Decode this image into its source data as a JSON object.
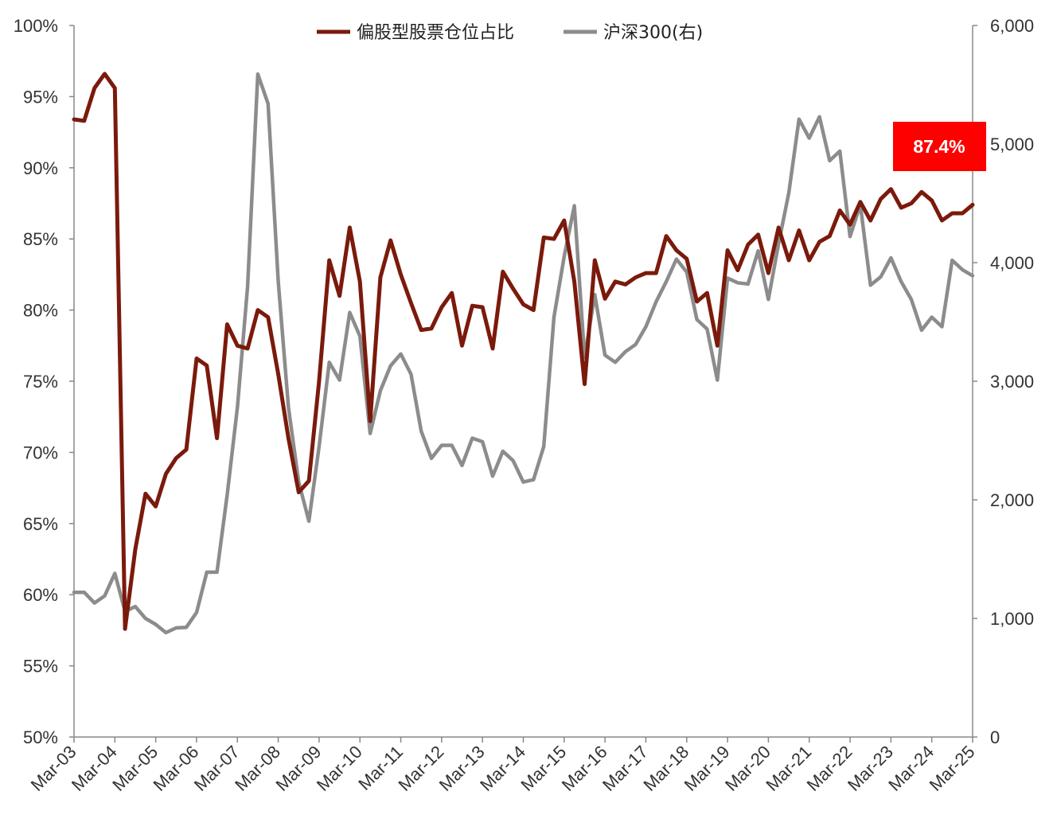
{
  "chart_data": {
    "type": "line",
    "title": "",
    "xlabel": "",
    "ylabel": "",
    "x_tick_labels": [
      "Mar-03",
      "Mar-04",
      "Mar-05",
      "Mar-06",
      "Mar-07",
      "Mar-08",
      "Mar-09",
      "Mar-10",
      "Mar-11",
      "Mar-12",
      "Mar-13",
      "Mar-14",
      "Mar-15",
      "Mar-16",
      "Mar-17",
      "Mar-18",
      "Mar-19",
      "Mar-20",
      "Mar-21",
      "Mar-22",
      "Mar-23",
      "Mar-24",
      "Mar-25"
    ],
    "y_left": {
      "ticks": [
        50,
        55,
        60,
        65,
        70,
        75,
        80,
        85,
        90,
        95,
        100
      ],
      "unit": "%",
      "range": [
        50,
        100
      ]
    },
    "y_right": {
      "ticks": [
        0,
        1000,
        2000,
        3000,
        4000,
        5000,
        6000
      ],
      "labels": [
        "0",
        "1,000",
        "2,000",
        "3,000",
        "4,000",
        "5,000",
        "6,000"
      ],
      "range": [
        0,
        6000
      ]
    },
    "legend_position": "top-center",
    "grid": false,
    "series": [
      {
        "name": "偏股型股票仓位占比",
        "axis": "left",
        "color": "#7B1A0C",
        "values": [
          [
            "2003-03",
            93.4
          ],
          [
            "2003-06",
            93.3
          ],
          [
            "2003-09",
            95.6
          ],
          [
            "2003-12",
            96.6
          ],
          [
            "2004-03",
            95.6
          ],
          [
            "2004-06",
            57.6
          ],
          [
            "2004-09",
            63.2
          ],
          [
            "2004-12",
            67.1
          ],
          [
            "2005-03",
            66.2
          ],
          [
            "2005-06",
            68.5
          ],
          [
            "2005-09",
            69.6
          ],
          [
            "2005-12",
            70.2
          ],
          [
            "2006-03",
            76.6
          ],
          [
            "2006-06",
            76.1
          ],
          [
            "2006-09",
            71.0
          ],
          [
            "2006-12",
            79.0
          ],
          [
            "2007-03",
            77.5
          ],
          [
            "2007-06",
            77.3
          ],
          [
            "2007-09",
            80.0
          ],
          [
            "2007-12",
            79.5
          ],
          [
            "2008-03",
            75.5
          ],
          [
            "2008-06",
            71.0
          ],
          [
            "2008-09",
            67.2
          ],
          [
            "2008-12",
            68.0
          ],
          [
            "2009-03",
            75.0
          ],
          [
            "2009-06",
            83.5
          ],
          [
            "2009-09",
            81.0
          ],
          [
            "2009-12",
            85.8
          ],
          [
            "2010-03",
            82.0
          ],
          [
            "2010-06",
            72.2
          ],
          [
            "2010-09",
            82.3
          ],
          [
            "2010-12",
            84.9
          ],
          [
            "2011-03",
            82.5
          ],
          [
            "2011-06",
            80.5
          ],
          [
            "2011-09",
            78.6
          ],
          [
            "2011-12",
            78.7
          ],
          [
            "2012-03",
            80.2
          ],
          [
            "2012-06",
            81.2
          ],
          [
            "2012-09",
            77.5
          ],
          [
            "2012-12",
            80.3
          ],
          [
            "2013-03",
            80.2
          ],
          [
            "2013-06",
            77.3
          ],
          [
            "2013-09",
            82.7
          ],
          [
            "2013-12",
            81.5
          ],
          [
            "2014-03",
            80.4
          ],
          [
            "2014-06",
            80.0
          ],
          [
            "2014-09",
            85.1
          ],
          [
            "2014-12",
            85.0
          ],
          [
            "2015-03",
            86.3
          ],
          [
            "2015-06",
            82.0
          ],
          [
            "2015-09",
            74.8
          ],
          [
            "2015-12",
            83.5
          ],
          [
            "2016-03",
            80.8
          ],
          [
            "2016-06",
            82.0
          ],
          [
            "2016-09",
            81.8
          ],
          [
            "2016-12",
            82.3
          ],
          [
            "2017-03",
            82.6
          ],
          [
            "2017-06",
            82.6
          ],
          [
            "2017-09",
            85.2
          ],
          [
            "2017-12",
            84.2
          ],
          [
            "2018-03",
            83.6
          ],
          [
            "2018-06",
            80.6
          ],
          [
            "2018-09",
            81.2
          ],
          [
            "2018-12",
            77.5
          ],
          [
            "2019-03",
            84.2
          ],
          [
            "2019-06",
            82.8
          ],
          [
            "2019-09",
            84.6
          ],
          [
            "2019-12",
            85.3
          ],
          [
            "2020-03",
            82.6
          ],
          [
            "2020-06",
            85.8
          ],
          [
            "2020-09",
            83.5
          ],
          [
            "2020-12",
            85.6
          ],
          [
            "2021-03",
            83.5
          ],
          [
            "2021-06",
            84.8
          ],
          [
            "2021-09",
            85.2
          ],
          [
            "2021-12",
            87.0
          ],
          [
            "2022-03",
            86.0
          ],
          [
            "2022-06",
            87.6
          ],
          [
            "2022-09",
            86.3
          ],
          [
            "2022-12",
            87.8
          ],
          [
            "2023-03",
            88.5
          ],
          [
            "2023-06",
            87.2
          ],
          [
            "2023-09",
            87.5
          ],
          [
            "2023-12",
            88.3
          ],
          [
            "2024-03",
            87.7
          ],
          [
            "2024-06",
            86.3
          ],
          [
            "2024-09",
            86.8
          ],
          [
            "2024-12",
            86.8
          ],
          [
            "2025-03",
            87.4
          ]
        ]
      },
      {
        "name": "沪深300(右)",
        "axis": "right",
        "color": "#8C8C8C",
        "values": [
          [
            "2003-03",
            1220
          ],
          [
            "2003-06",
            1220
          ],
          [
            "2003-09",
            1130
          ],
          [
            "2003-12",
            1190
          ],
          [
            "2004-03",
            1380
          ],
          [
            "2004-06",
            1060
          ],
          [
            "2004-09",
            1100
          ],
          [
            "2004-12",
            1000
          ],
          [
            "2005-03",
            950
          ],
          [
            "2005-06",
            880
          ],
          [
            "2005-09",
            920
          ],
          [
            "2005-12",
            925
          ],
          [
            "2006-03",
            1050
          ],
          [
            "2006-06",
            1390
          ],
          [
            "2006-09",
            1390
          ],
          [
            "2006-12",
            2040
          ],
          [
            "2007-03",
            2780
          ],
          [
            "2007-06",
            3800
          ],
          [
            "2007-09",
            5590
          ],
          [
            "2007-12",
            5340
          ],
          [
            "2008-03",
            3840
          ],
          [
            "2008-06",
            2780
          ],
          [
            "2008-09",
            2150
          ],
          [
            "2008-12",
            1820
          ],
          [
            "2009-03",
            2450
          ],
          [
            "2009-06",
            3160
          ],
          [
            "2009-09",
            3010
          ],
          [
            "2009-12",
            3580
          ],
          [
            "2010-03",
            3380
          ],
          [
            "2010-06",
            2560
          ],
          [
            "2010-09",
            2920
          ],
          [
            "2010-12",
            3130
          ],
          [
            "2011-03",
            3230
          ],
          [
            "2011-06",
            3060
          ],
          [
            "2011-09",
            2580
          ],
          [
            "2011-12",
            2350
          ],
          [
            "2012-03",
            2460
          ],
          [
            "2012-06",
            2460
          ],
          [
            "2012-09",
            2290
          ],
          [
            "2012-12",
            2520
          ],
          [
            "2013-03",
            2490
          ],
          [
            "2013-06",
            2200
          ],
          [
            "2013-09",
            2410
          ],
          [
            "2013-12",
            2330
          ],
          [
            "2014-03",
            2150
          ],
          [
            "2014-06",
            2170
          ],
          [
            "2014-09",
            2450
          ],
          [
            "2014-12",
            3540
          ],
          [
            "2015-03",
            4050
          ],
          [
            "2015-06",
            4480
          ],
          [
            "2015-09",
            3200
          ],
          [
            "2015-12",
            3730
          ],
          [
            "2016-03",
            3220
          ],
          [
            "2016-06",
            3160
          ],
          [
            "2016-09",
            3250
          ],
          [
            "2016-12",
            3310
          ],
          [
            "2017-03",
            3460
          ],
          [
            "2017-06",
            3670
          ],
          [
            "2017-09",
            3840
          ],
          [
            "2017-12",
            4030
          ],
          [
            "2018-03",
            3920
          ],
          [
            "2018-06",
            3520
          ],
          [
            "2018-09",
            3440
          ],
          [
            "2018-12",
            3010
          ],
          [
            "2019-03",
            3870
          ],
          [
            "2019-06",
            3830
          ],
          [
            "2019-09",
            3820
          ],
          [
            "2019-12",
            4100
          ],
          [
            "2020-03",
            3690
          ],
          [
            "2020-06",
            4160
          ],
          [
            "2020-09",
            4590
          ],
          [
            "2020-12",
            5210
          ],
          [
            "2021-03",
            5050
          ],
          [
            "2021-06",
            5230
          ],
          [
            "2021-09",
            4860
          ],
          [
            "2021-12",
            4940
          ],
          [
            "2022-03",
            4220
          ],
          [
            "2022-06",
            4490
          ],
          [
            "2022-09",
            3810
          ],
          [
            "2022-12",
            3880
          ],
          [
            "2023-03",
            4040
          ],
          [
            "2023-06",
            3840
          ],
          [
            "2023-09",
            3690
          ],
          [
            "2023-12",
            3430
          ],
          [
            "2024-03",
            3540
          ],
          [
            "2024-06",
            3460
          ],
          [
            "2024-09",
            4020
          ],
          [
            "2024-12",
            3940
          ],
          [
            "2025-03",
            3890
          ]
        ]
      }
    ],
    "annotation": {
      "text": "87.4%",
      "background": "#FF0000",
      "color": "#FFFFFF"
    }
  }
}
